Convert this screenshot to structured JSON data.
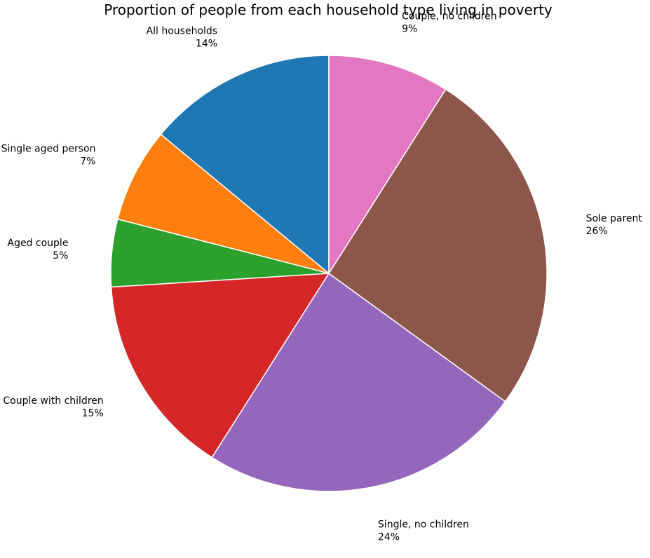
{
  "chart_data": {
    "type": "pie",
    "title": "Proportion of people from each household type living in poverty",
    "start_angle_deg": 90,
    "direction": "counterclockwise",
    "slices": [
      {
        "label": "All households",
        "value": 14,
        "pct_label": "14%",
        "color": "#1f77b4"
      },
      {
        "label": "Single aged person",
        "value": 7,
        "pct_label": "7%",
        "color": "#ff7f0e"
      },
      {
        "label": "Aged couple",
        "value": 5,
        "pct_label": "5%",
        "color": "#2ca02c"
      },
      {
        "label": "Couple with children",
        "value": 15,
        "pct_label": "15%",
        "color": "#d62728"
      },
      {
        "label": "Single, no children",
        "value": 24,
        "pct_label": "24%",
        "color": "#9467bd"
      },
      {
        "label": "Sole parent",
        "value": 26,
        "pct_label": "26%",
        "color": "#8c564b"
      },
      {
        "label": "Couple, no children",
        "value": 9,
        "pct_label": "9%",
        "color": "#e377c2"
      }
    ]
  }
}
